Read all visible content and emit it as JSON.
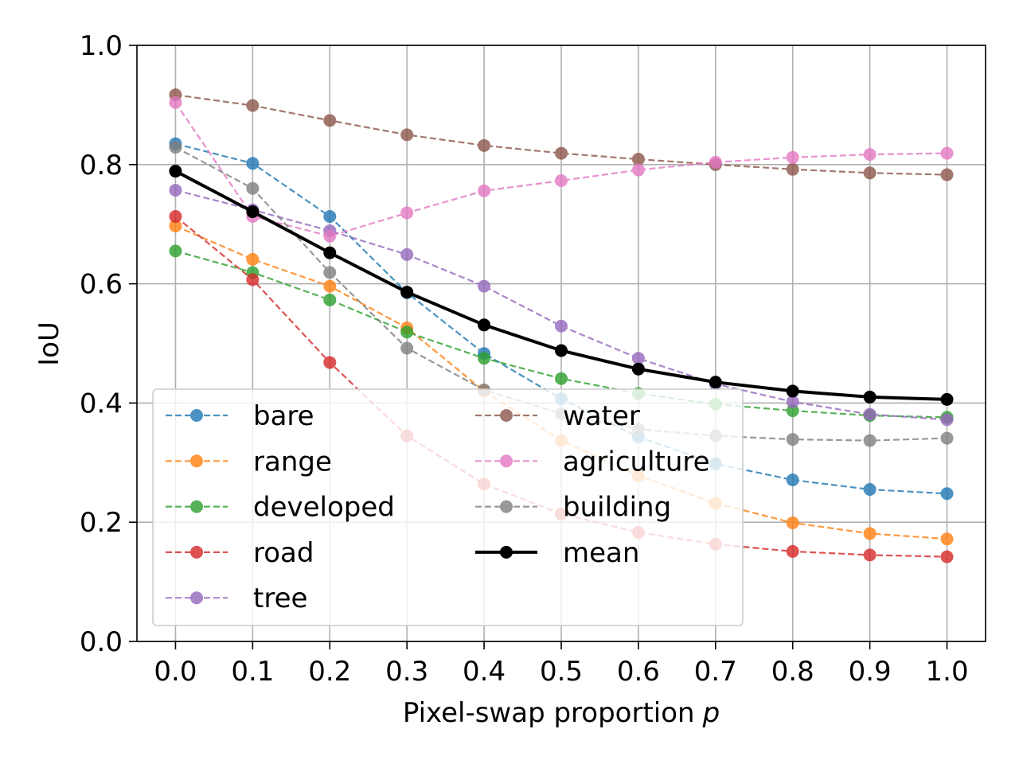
{
  "chart_data": {
    "type": "line",
    "title": "",
    "xlabel": "Pixel-swap proportion",
    "xlabel_var": "p",
    "ylabel": "IoU",
    "xlim": [
      -0.05,
      1.05
    ],
    "ylim": [
      0.0,
      1.0
    ],
    "grid": true,
    "legend_position": "lower-left",
    "x": [
      0.0,
      0.1,
      0.2,
      0.3,
      0.4,
      0.5,
      0.6,
      0.7,
      0.8,
      0.9,
      1.0
    ],
    "x_tick_labels": [
      "0.0",
      "0.1",
      "0.2",
      "0.3",
      "0.4",
      "0.5",
      "0.6",
      "0.7",
      "0.8",
      "0.9",
      "1.0"
    ],
    "y_ticks": [
      0.0,
      0.2,
      0.4,
      0.6,
      0.8,
      1.0
    ],
    "y_tick_labels": [
      "0.0",
      "0.2",
      "0.4",
      "0.6",
      "0.8",
      "1.0"
    ],
    "series": [
      {
        "name": "bare",
        "color": "#1f77b4",
        "style": "dashed",
        "values": [
          0.835,
          0.802,
          0.713,
          0.585,
          0.483,
          0.407,
          0.343,
          0.298,
          0.271,
          0.255,
          0.248
        ]
      },
      {
        "name": "range",
        "color": "#ff7f0e",
        "style": "dashed",
        "values": [
          0.697,
          0.641,
          0.596,
          0.526,
          0.42,
          0.337,
          0.278,
          0.232,
          0.199,
          0.181,
          0.172
        ]
      },
      {
        "name": "developed",
        "color": "#2ca02c",
        "style": "dashed",
        "values": [
          0.655,
          0.619,
          0.573,
          0.519,
          0.475,
          0.441,
          0.416,
          0.398,
          0.387,
          0.379,
          0.376
        ]
      },
      {
        "name": "road",
        "color": "#d62728",
        "style": "dashed",
        "values": [
          0.713,
          0.607,
          0.468,
          0.345,
          0.264,
          0.214,
          0.183,
          0.163,
          0.151,
          0.145,
          0.142
        ]
      },
      {
        "name": "tree",
        "color": "#9467bd",
        "style": "dashed",
        "values": [
          0.757,
          0.724,
          0.689,
          0.649,
          0.596,
          0.529,
          0.475,
          0.432,
          0.402,
          0.381,
          0.372
        ]
      },
      {
        "name": "water",
        "color": "#8c564b",
        "style": "dashed",
        "values": [
          0.917,
          0.899,
          0.874,
          0.85,
          0.832,
          0.819,
          0.809,
          0.8,
          0.792,
          0.786,
          0.783
        ]
      },
      {
        "name": "agriculture",
        "color": "#e377c2",
        "style": "dashed",
        "values": [
          0.904,
          0.713,
          0.68,
          0.719,
          0.756,
          0.773,
          0.791,
          0.804,
          0.812,
          0.817,
          0.819
        ]
      },
      {
        "name": "building",
        "color": "#7f7f7f",
        "style": "dashed",
        "values": [
          0.829,
          0.76,
          0.619,
          0.492,
          0.422,
          0.382,
          0.356,
          0.345,
          0.339,
          0.337,
          0.341
        ]
      },
      {
        "name": "mean",
        "color": "#000000",
        "style": "solid",
        "values": [
          0.789,
          0.721,
          0.652,
          0.586,
          0.531,
          0.488,
          0.457,
          0.435,
          0.42,
          0.41,
          0.406
        ]
      }
    ]
  }
}
